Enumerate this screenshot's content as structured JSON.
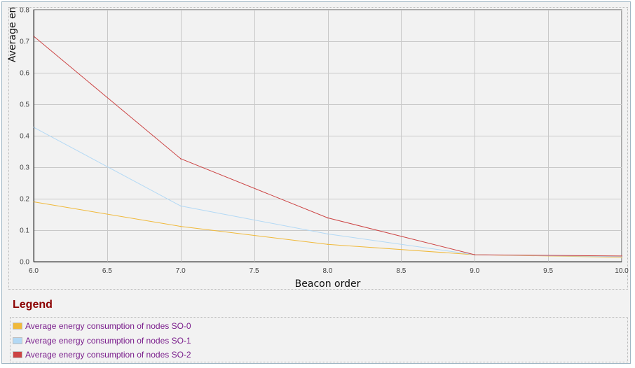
{
  "chart_data": {
    "type": "line",
    "xlabel": "Beacon order",
    "ylabel": "Average en",
    "xlim": [
      6.0,
      10.0
    ],
    "ylim": [
      0.0,
      0.8
    ],
    "x_ticks": [
      "6.0",
      "6.5",
      "7.0",
      "7.5",
      "8.0",
      "8.5",
      "9.0",
      "9.5",
      "10.0"
    ],
    "y_ticks": [
      "0.0",
      "0.1",
      "0.2",
      "0.3",
      "0.4",
      "0.5",
      "0.6",
      "0.7",
      "0.8"
    ],
    "x_tick_values": [
      6.0,
      6.5,
      7.0,
      7.5,
      8.0,
      8.5,
      9.0,
      9.5,
      10.0
    ],
    "y_tick_values": [
      0.0,
      0.1,
      0.2,
      0.3,
      0.4,
      0.5,
      0.6,
      0.7,
      0.8
    ],
    "grid": true,
    "legend_position": "bottom",
    "x": [
      6,
      7,
      8,
      9,
      10
    ],
    "series": [
      {
        "name": "Average energy consumption of nodes SO-0",
        "color": "#f0b93a",
        "values": [
          0.19,
          0.112,
          0.055,
          0.022,
          0.014
        ]
      },
      {
        "name": "Average energy consumption of nodes SO-1",
        "color": "#b3d9f5",
        "values": [
          0.427,
          0.177,
          0.088,
          0.022,
          0.016
        ]
      },
      {
        "name": "Average energy consumption of nodes SO-2",
        "color": "#cc4444",
        "values": [
          0.716,
          0.327,
          0.139,
          0.022,
          0.018
        ]
      }
    ]
  },
  "legend": {
    "title": "Legend"
  }
}
